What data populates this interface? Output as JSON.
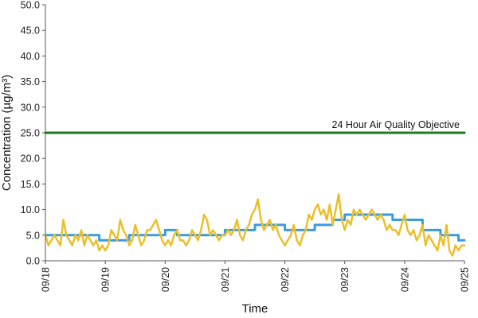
{
  "chart_data": {
    "type": "line",
    "title": "",
    "xlabel": "Time",
    "ylabel": "Concentration (µg/m³)",
    "ylim": [
      0,
      50
    ],
    "y_ticks": [
      "0.0",
      "5.0",
      "10.0",
      "15.0",
      "20.0",
      "25.0",
      "30.0",
      "35.0",
      "40.0",
      "45.0",
      "50.0"
    ],
    "x_ticks": [
      "09/18",
      "09/19",
      "09/20",
      "09/21",
      "09/22",
      "09/23",
      "09/24",
      "09/25"
    ],
    "grid": false,
    "legend": "none",
    "annotation": {
      "text": "24 Hour Air Quality Objective",
      "value": 25
    },
    "series": [
      {
        "color": "#1e7d1e",
        "x": [
          0,
          7
        ],
        "values": [
          25,
          25
        ]
      },
      {
        "color": "#3a9be0",
        "x": [
          0,
          0.9,
          0.9,
          1.4,
          1.4,
          2.0,
          2.0,
          2.2,
          2.2,
          3.0,
          3.0,
          3.5,
          3.5,
          4.0,
          4.0,
          4.5,
          4.5,
          4.8,
          4.8,
          5.0,
          5.0,
          5.3,
          5.3,
          5.8,
          5.8,
          6.3,
          6.3,
          6.6,
          6.6,
          6.9,
          6.9,
          7.0
        ],
        "values": [
          5,
          5,
          4,
          4,
          5,
          5,
          6,
          6,
          5,
          5,
          6,
          6,
          7,
          7,
          6,
          6,
          7,
          7,
          8,
          8,
          9,
          9,
          9,
          9,
          8,
          8,
          6,
          6,
          5,
          5,
          4,
          4
        ]
      },
      {
        "color": "#eac02a",
        "x": [
          0,
          0.05,
          0.1,
          0.15,
          0.2,
          0.25,
          0.3,
          0.35,
          0.4,
          0.45,
          0.5,
          0.55,
          0.6,
          0.65,
          0.7,
          0.75,
          0.8,
          0.85,
          0.9,
          0.95,
          1.0,
          1.05,
          1.1,
          1.15,
          1.2,
          1.25,
          1.3,
          1.35,
          1.4,
          1.45,
          1.5,
          1.55,
          1.6,
          1.65,
          1.7,
          1.75,
          1.8,
          1.85,
          1.9,
          1.95,
          2.0,
          2.05,
          2.1,
          2.15,
          2.2,
          2.25,
          2.3,
          2.35,
          2.4,
          2.45,
          2.5,
          2.55,
          2.6,
          2.65,
          2.7,
          2.75,
          2.8,
          2.85,
          2.9,
          2.95,
          3.0,
          3.05,
          3.1,
          3.15,
          3.2,
          3.25,
          3.3,
          3.35,
          3.4,
          3.45,
          3.5,
          3.55,
          3.6,
          3.65,
          3.7,
          3.75,
          3.8,
          3.85,
          3.9,
          3.95,
          4.0,
          4.05,
          4.1,
          4.15,
          4.2,
          4.25,
          4.3,
          4.35,
          4.4,
          4.45,
          4.5,
          4.55,
          4.6,
          4.65,
          4.7,
          4.75,
          4.8,
          4.85,
          4.9,
          4.95,
          5.0,
          5.05,
          5.1,
          5.15,
          5.2,
          5.25,
          5.3,
          5.35,
          5.4,
          5.45,
          5.5,
          5.55,
          5.6,
          5.65,
          5.7,
          5.75,
          5.8,
          5.85,
          5.9,
          5.95,
          6.0,
          6.05,
          6.1,
          6.15,
          6.2,
          6.25,
          6.3,
          6.35,
          6.4,
          6.45,
          6.5,
          6.55,
          6.6,
          6.65,
          6.7,
          6.75,
          6.8,
          6.85,
          6.9,
          6.95,
          7.0
        ],
        "values": [
          5,
          3,
          4,
          5,
          4,
          3,
          8,
          5,
          4,
          3,
          5,
          4,
          6,
          3,
          5,
          4,
          3,
          4,
          2,
          3,
          2,
          3,
          6,
          5,
          4,
          8,
          6,
          5,
          3,
          4,
          7,
          5,
          3,
          4,
          6,
          6,
          7,
          8,
          6,
          4,
          3,
          4,
          3,
          5,
          6,
          4,
          4,
          3,
          4,
          6,
          5,
          4,
          6,
          9,
          8,
          5,
          6,
          5,
          4,
          5,
          5,
          6,
          5,
          6,
          8,
          5,
          4,
          6,
          7,
          9,
          10,
          12,
          8,
          6,
          7,
          8,
          6,
          7,
          5,
          4,
          3,
          4,
          5,
          7,
          4,
          3,
          5,
          6,
          9,
          8,
          10,
          11,
          9,
          10,
          8,
          11,
          7,
          10,
          13,
          8,
          6,
          8,
          7,
          10,
          9,
          10,
          9,
          8,
          9,
          10,
          9,
          8,
          9,
          8,
          6,
          7,
          6,
          6,
          5,
          7,
          9,
          6,
          5,
          6,
          4,
          5,
          7,
          3,
          5,
          4,
          3,
          2,
          5,
          3,
          7,
          2,
          1,
          3,
          2,
          3,
          3
        ]
      }
    ]
  }
}
